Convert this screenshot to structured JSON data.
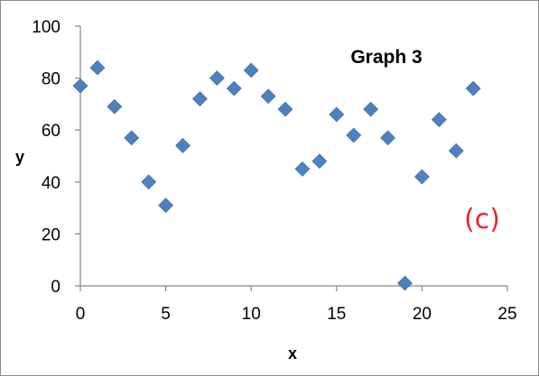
{
  "chart_data": {
    "type": "scatter",
    "title": "Graph 3",
    "xlabel": "x",
    "ylabel": "y",
    "xlim": [
      0,
      25
    ],
    "ylim": [
      0,
      100
    ],
    "x_ticks": [
      "0",
      "5",
      "10",
      "15",
      "20",
      "25"
    ],
    "y_ticks": [
      "0",
      "20",
      "40",
      "60",
      "80",
      "100"
    ],
    "grid": false,
    "legend": "none",
    "marker": "diamond",
    "marker_color": "#4f81bd",
    "annotation": "(c)",
    "annotation_color": "#e8242c",
    "series": [
      {
        "x": [
          0,
          1,
          2,
          3,
          4,
          5,
          6,
          7,
          8,
          9,
          10,
          11,
          12,
          13,
          14,
          15,
          16,
          17,
          18,
          19,
          20,
          21,
          22,
          23
        ],
        "y": [
          77,
          84,
          69,
          57,
          40,
          31,
          54,
          72,
          80,
          76,
          83,
          73,
          68,
          45,
          48,
          66,
          58,
          68,
          57,
          1,
          42,
          64,
          52,
          76
        ]
      }
    ]
  }
}
